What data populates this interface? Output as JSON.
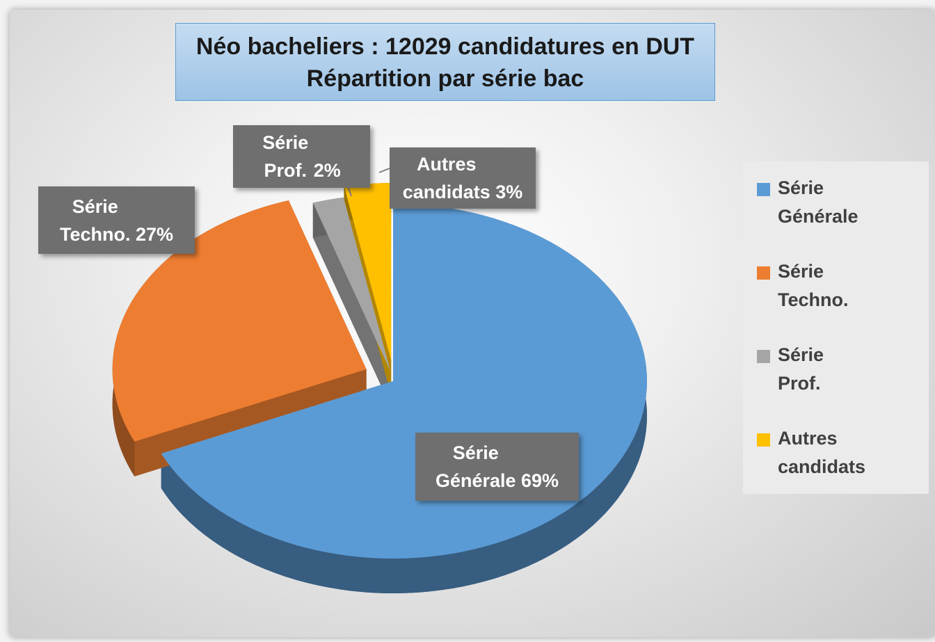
{
  "chart_data": {
    "type": "pie",
    "title": "Néo bacheliers : 12029 candidatures en DUT",
    "subtitle": "Répartition par série bac",
    "categories": [
      "Série Générale",
      "Série Techno.",
      "Série Prof.",
      "Autres candidats"
    ],
    "values": [
      69,
      27,
      2,
      3
    ],
    "value_labels": [
      "69%",
      "27%",
      "2%",
      "3%"
    ],
    "colors": [
      "#5b9bd5",
      "#ed7d31",
      "#a5a5a5",
      "#ffc000"
    ],
    "legend": "right"
  }
}
